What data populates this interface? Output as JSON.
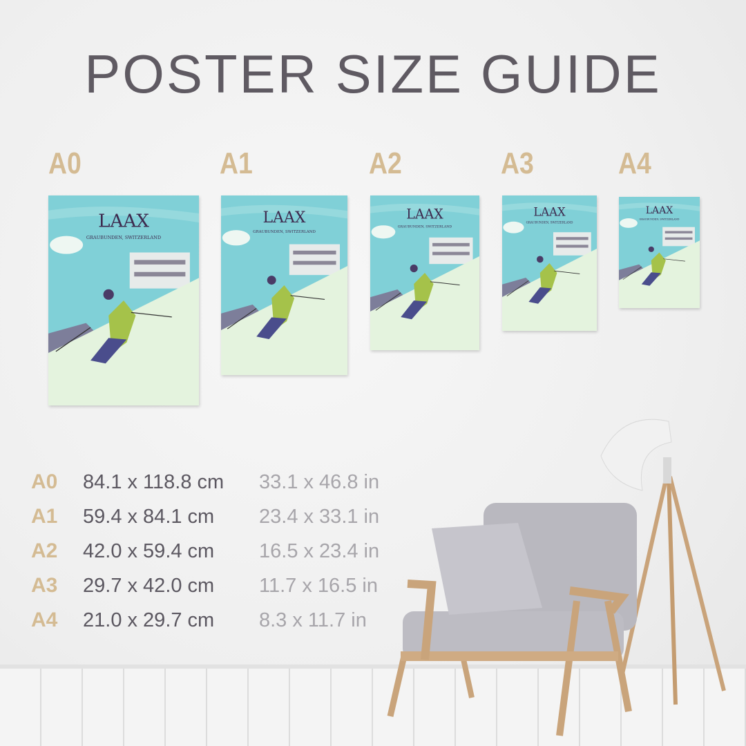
{
  "title": "POSTER SIZE GUIDE",
  "poster": {
    "name": "LAAX",
    "subtitle": "GRAUBUNDEN, SWITZERLAND"
  },
  "size_labels": [
    "A0",
    "A1",
    "A2",
    "A3",
    "A4"
  ],
  "sizes": [
    {
      "code": "A0",
      "cm": "84.1 x 118.8 cm",
      "in": "33.1 x 46.8 in"
    },
    {
      "code": "A1",
      "cm": "59.4 x 84.1 cm",
      "in": "23.4 x 33.1 in"
    },
    {
      "code": "A2",
      "cm": "42.0 x 59.4 cm",
      "in": "16.5 x 23.4 in"
    },
    {
      "code": "A3",
      "cm": "29.7 x 42.0 cm",
      "in": "11.7 x 16.5 in"
    },
    {
      "code": "A4",
      "cm": "21.0 x 29.7 cm",
      "in": "8.3 x 11.7 in"
    }
  ],
  "colors": {
    "accent": "#d4bb93",
    "title": "#5f5a62",
    "sky": "#7fd0d6",
    "snow": "#e4f3de"
  }
}
